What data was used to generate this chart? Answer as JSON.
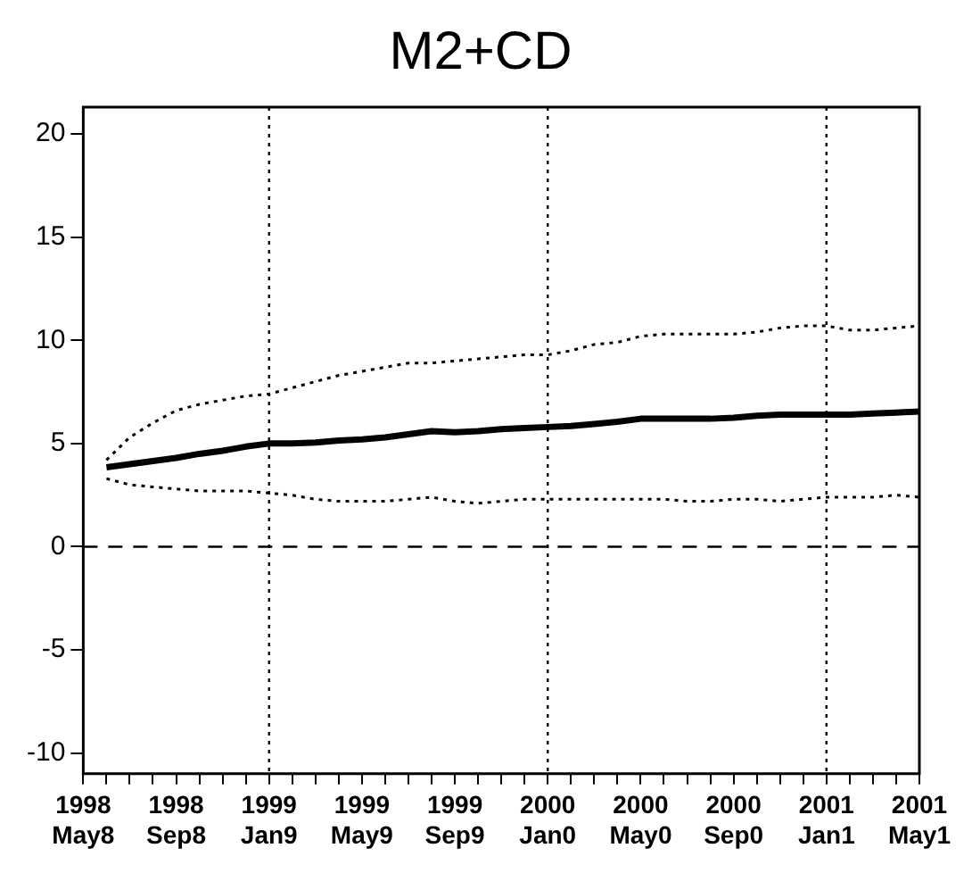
{
  "chart_data": {
    "type": "line",
    "title": "M2+CD",
    "categories": [
      "1998\nMay8",
      null,
      null,
      null,
      "1998\nSep8",
      null,
      null,
      null,
      "1999\nJan9",
      null,
      null,
      null,
      "1999\nMay9",
      null,
      null,
      null,
      "1999\nSep9",
      null,
      null,
      null,
      "2000\nJan0",
      null,
      null,
      null,
      "2000\nMay0",
      null,
      null,
      null,
      "2000\nSep0",
      null,
      null,
      null,
      "2001\nJan1",
      null,
      null,
      null,
      "2001\nMay1"
    ],
    "series": [
      {
        "color": "#000000",
        "line_style": "solid",
        "values": [
          null,
          3.85,
          4.0,
          4.15,
          4.3,
          4.5,
          4.65,
          4.85,
          5.0,
          5.0,
          5.05,
          5.15,
          5.2,
          5.3,
          5.45,
          5.6,
          5.55,
          5.6,
          5.7,
          5.75,
          5.8,
          5.85,
          5.95,
          6.05,
          6.2,
          6.2,
          6.2,
          6.2,
          6.25,
          6.35,
          6.4,
          6.4,
          6.4,
          6.4,
          6.45,
          6.5,
          6.55
        ]
      },
      {
        "color": "#000000",
        "line_style": "dotted",
        "values": [
          null,
          4.2,
          5.3,
          6.0,
          6.6,
          6.9,
          7.1,
          7.3,
          7.4,
          7.7,
          8.0,
          8.3,
          8.5,
          8.7,
          8.9,
          8.9,
          9.0,
          9.1,
          9.2,
          9.3,
          9.3,
          9.5,
          9.8,
          9.9,
          10.2,
          10.3,
          10.3,
          10.3,
          10.3,
          10.4,
          10.6,
          10.7,
          10.7,
          10.5,
          10.5,
          10.6,
          10.7
        ]
      },
      {
        "color": "#000000",
        "line_style": "dotted",
        "values": [
          null,
          3.3,
          3.0,
          2.9,
          2.8,
          2.7,
          2.7,
          2.7,
          2.6,
          2.5,
          2.3,
          2.2,
          2.2,
          2.2,
          2.3,
          2.4,
          2.2,
          2.1,
          2.2,
          2.3,
          2.3,
          2.3,
          2.3,
          2.3,
          2.3,
          2.3,
          2.2,
          2.2,
          2.3,
          2.3,
          2.2,
          2.3,
          2.4,
          2.4,
          2.4,
          2.5,
          2.4
        ]
      }
    ],
    "ylim": [
      -11,
      21.3
    ],
    "yticks": [
      -10,
      -5,
      0,
      5,
      10,
      15,
      20
    ],
    "grid": false,
    "legend": false,
    "marker": "none",
    "ref_lines": [
      {
        "axis": "x",
        "value": "1999\nJan9",
        "line_style": "dotted"
      },
      {
        "axis": "x",
        "value": "2000\nJan0",
        "line_style": "dotted"
      },
      {
        "axis": "x",
        "value": "2001\nJan1",
        "line_style": "dotted"
      },
      {
        "axis": "y",
        "value": 0,
        "line_style": "dashed"
      }
    ]
  }
}
